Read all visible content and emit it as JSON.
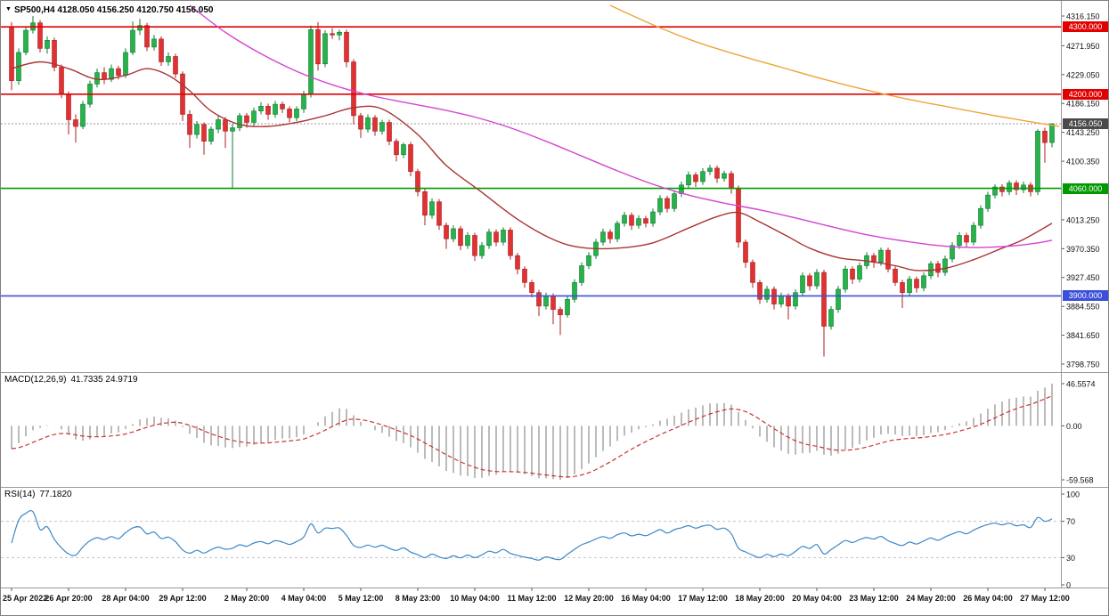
{
  "header": {
    "marker": "▼",
    "symbol_period": "SP500,H4",
    "ohlc": "4128.050 4156.250 4120.750 4156.050"
  },
  "colors": {
    "bull": "#27b24a",
    "bull_border": "#0d7a33",
    "bear": "#e03232",
    "bear_border": "#a82020",
    "current_badge": "#4a4a4a",
    "macd_hist": "#777777",
    "macd_signal": "#cc3333",
    "rsi": "#3b87c8"
  },
  "price_axis": {
    "range": {
      "top": 4316.15,
      "bottom": 3798.75
    },
    "ticks": [
      "4316.150",
      "4271.950",
      "4229.050",
      "4186.150",
      "4143.250",
      "4100.350",
      "4013.250",
      "3970.350",
      "3927.450",
      "3884.550",
      "3841.650",
      "3798.750"
    ]
  },
  "levels": [
    {
      "value": 4300,
      "label": "4300.000",
      "color": "#e00000"
    },
    {
      "value": 4200,
      "label": "4200.000",
      "color": "#e00000"
    },
    {
      "value": 4060,
      "label": "4060.000",
      "color": "#009a00"
    },
    {
      "value": 3900,
      "label": "3900.000",
      "color": "#3b4fd8"
    }
  ],
  "current_price": {
    "value": 4156.05,
    "label": "4156.050"
  },
  "chart_data": {
    "type": "candlestick",
    "symbol": "SP500",
    "timeframe": "H4",
    "title": "SP500,H4",
    "last_ohlc": {
      "open": 4128.05,
      "high": 4156.25,
      "low": 4120.75,
      "close": 4156.05
    },
    "candles": [
      [
        4300,
        4307,
        4206,
        4220
      ],
      [
        4220,
        4268,
        4214,
        4262
      ],
      [
        4262,
        4300,
        4258,
        4295
      ],
      [
        4295,
        4316,
        4290,
        4306
      ],
      [
        4306,
        4310,
        4262,
        4268
      ],
      [
        4268,
        4286,
        4260,
        4280
      ],
      [
        4280,
        4284,
        4234,
        4240
      ],
      [
        4240,
        4244,
        4194,
        4200
      ],
      [
        4200,
        4204,
        4140,
        4162
      ],
      [
        4162,
        4170,
        4128,
        4152
      ],
      [
        4152,
        4190,
        4148,
        4185
      ],
      [
        4185,
        4220,
        4180,
        4215
      ],
      [
        4215,
        4238,
        4210,
        4232
      ],
      [
        4232,
        4240,
        4215,
        4222
      ],
      [
        4222,
        4244,
        4218,
        4238
      ],
      [
        4238,
        4242,
        4222,
        4228
      ],
      [
        4228,
        4268,
        4224,
        4262
      ],
      [
        4262,
        4308,
        4258,
        4295
      ],
      [
        4295,
        4312,
        4288,
        4302
      ],
      [
        4302,
        4306,
        4264,
        4270
      ],
      [
        4270,
        4288,
        4265,
        4282
      ],
      [
        4282,
        4286,
        4242,
        4248
      ],
      [
        4248,
        4262,
        4242,
        4256
      ],
      [
        4256,
        4260,
        4224,
        4230
      ],
      [
        4230,
        4234,
        4160,
        4170
      ],
      [
        4170,
        4176,
        4120,
        4140
      ],
      [
        4140,
        4160,
        4134,
        4155
      ],
      [
        4155,
        4158,
        4110,
        4130
      ],
      [
        4130,
        4152,
        4125,
        4148
      ],
      [
        4148,
        4168,
        4142,
        4162
      ],
      [
        4162,
        4166,
        4120,
        4145
      ],
      [
        4145,
        4156,
        4061,
        4150
      ],
      [
        4150,
        4172,
        4145,
        4168
      ],
      [
        4168,
        4172,
        4150,
        4158
      ],
      [
        4158,
        4180,
        4152,
        4175
      ],
      [
        4175,
        4188,
        4170,
        4182
      ],
      [
        4182,
        4186,
        4162,
        4170
      ],
      [
        4170,
        4190,
        4165,
        4185
      ],
      [
        4185,
        4189,
        4172,
        4178
      ],
      [
        4178,
        4182,
        4158,
        4165
      ],
      [
        4165,
        4182,
        4160,
        4178
      ],
      [
        4178,
        4205,
        4172,
        4200
      ],
      [
        4200,
        4302,
        4195,
        4296
      ],
      [
        4296,
        4307,
        4235,
        4245
      ],
      [
        4245,
        4295,
        4240,
        4290
      ],
      [
        4290,
        4298,
        4282,
        4288
      ],
      [
        4288,
        4296,
        4280,
        4292
      ],
      [
        4292,
        4296,
        4240,
        4248
      ],
      [
        4248,
        4252,
        4155,
        4168
      ],
      [
        4168,
        4172,
        4135,
        4148
      ],
      [
        4148,
        4170,
        4143,
        4165
      ],
      [
        4165,
        4169,
        4138,
        4145
      ],
      [
        4145,
        4162,
        4140,
        4158
      ],
      [
        4158,
        4162,
        4124,
        4130
      ],
      [
        4130,
        4134,
        4100,
        4110
      ],
      [
        4110,
        4128,
        4105,
        4125
      ],
      [
        4125,
        4129,
        4078,
        4085
      ],
      [
        4085,
        4089,
        4048,
        4055
      ],
      [
        4055,
        4059,
        4005,
        4020
      ],
      [
        4020,
        4045,
        4015,
        4040
      ],
      [
        4040,
        4044,
        3998,
        4005
      ],
      [
        4005,
        4009,
        3970,
        3985
      ],
      [
        3985,
        4005,
        3980,
        4000
      ],
      [
        4000,
        4004,
        3968,
        3975
      ],
      [
        3975,
        3995,
        3970,
        3990
      ],
      [
        3990,
        3994,
        3952,
        3960
      ],
      [
        3960,
        3980,
        3955,
        3975
      ],
      [
        3975,
        4000,
        3970,
        3995
      ],
      [
        3995,
        3999,
        3974,
        3980
      ],
      [
        3980,
        4002,
        3975,
        3998
      ],
      [
        3998,
        4002,
        3954,
        3960
      ],
      [
        3960,
        3964,
        3932,
        3940
      ],
      [
        3940,
        3944,
        3912,
        3920
      ],
      [
        3920,
        3924,
        3898,
        3905
      ],
      [
        3905,
        3909,
        3870,
        3885
      ],
      [
        3885,
        3905,
        3880,
        3900
      ],
      [
        3900,
        3904,
        3858,
        3880
      ],
      [
        3880,
        3884,
        3842,
        3872
      ],
      [
        3872,
        3900,
        3868,
        3895
      ],
      [
        3895,
        3925,
        3890,
        3920
      ],
      [
        3920,
        3950,
        3915,
        3945
      ],
      [
        3945,
        3965,
        3940,
        3960
      ],
      [
        3960,
        3985,
        3955,
        3980
      ],
      [
        3980,
        4000,
        3975,
        3995
      ],
      [
        3995,
        3999,
        3978,
        3985
      ],
      [
        3985,
        4012,
        3980,
        4008
      ],
      [
        4008,
        4025,
        4003,
        4020
      ],
      [
        4020,
        4024,
        3998,
        4005
      ],
      [
        4005,
        4020,
        4000,
        4015
      ],
      [
        4015,
        4019,
        4002,
        4008
      ],
      [
        4008,
        4030,
        4003,
        4025
      ],
      [
        4025,
        4050,
        4020,
        4045
      ],
      [
        4045,
        4049,
        4024,
        4030
      ],
      [
        4030,
        4056,
        4025,
        4052
      ],
      [
        4052,
        4070,
        4047,
        4065
      ],
      [
        4065,
        4085,
        4060,
        4080
      ],
      [
        4080,
        4084,
        4062,
        4070
      ],
      [
        4070,
        4090,
        4065,
        4085
      ],
      [
        4085,
        4095,
        4080,
        4090
      ],
      [
        4090,
        4094,
        4068,
        4075
      ],
      [
        4075,
        4086,
        4070,
        4082
      ],
      [
        4082,
        4086,
        4052,
        4060
      ],
      [
        4060,
        4064,
        3972,
        3980
      ],
      [
        3980,
        3984,
        3942,
        3950
      ],
      [
        3950,
        3954,
        3912,
        3920
      ],
      [
        3920,
        3924,
        3888,
        3895
      ],
      [
        3895,
        3915,
        3890,
        3910
      ],
      [
        3910,
        3914,
        3880,
        3888
      ],
      [
        3888,
        3905,
        3883,
        3900
      ],
      [
        3900,
        3904,
        3865,
        3885
      ],
      [
        3885,
        3910,
        3880,
        3905
      ],
      [
        3905,
        3935,
        3900,
        3930
      ],
      [
        3930,
        3934,
        3908,
        3915
      ],
      [
        3915,
        3940,
        3910,
        3935
      ],
      [
        3935,
        3939,
        3810,
        3855
      ],
      [
        3855,
        3885,
        3850,
        3880
      ],
      [
        3880,
        3915,
        3875,
        3910
      ],
      [
        3910,
        3945,
        3905,
        3940
      ],
      [
        3940,
        3944,
        3918,
        3925
      ],
      [
        3925,
        3950,
        3920,
        3945
      ],
      [
        3945,
        3965,
        3940,
        3960
      ],
      [
        3960,
        3964,
        3942,
        3950
      ],
      [
        3950,
        3972,
        3945,
        3968
      ],
      [
        3968,
        3972,
        3935,
        3940
      ],
      [
        3940,
        3944,
        3915,
        3920
      ],
      [
        3920,
        3924,
        3882,
        3905
      ],
      [
        3905,
        3930,
        3900,
        3925
      ],
      [
        3925,
        3929,
        3905,
        3912
      ],
      [
        3912,
        3935,
        3907,
        3930
      ],
      [
        3930,
        3952,
        3925,
        3948
      ],
      [
        3948,
        3952,
        3928,
        3935
      ],
      [
        3935,
        3960,
        3930,
        3955
      ],
      [
        3955,
        3980,
        3950,
        3975
      ],
      [
        3975,
        3995,
        3970,
        3990
      ],
      [
        3990,
        3994,
        3972,
        3980
      ],
      [
        3980,
        4010,
        3975,
        4005
      ],
      [
        4005,
        4035,
        4000,
        4030
      ],
      [
        4030,
        4055,
        4025,
        4050
      ],
      [
        4050,
        4066,
        4045,
        4062
      ],
      [
        4062,
        4066,
        4048,
        4055
      ],
      [
        4055,
        4072,
        4050,
        4068
      ],
      [
        4068,
        4072,
        4050,
        4058
      ],
      [
        4058,
        4070,
        4053,
        4065
      ],
      [
        4065,
        4069,
        4048,
        4055
      ],
      [
        4055,
        4148,
        4050,
        4145
      ],
      [
        4145,
        4150,
        4098,
        4128
      ],
      [
        4128.05,
        4156.25,
        4120.75,
        4156.05
      ]
    ],
    "time_labels": [
      {
        "i": 0,
        "t": "25 Apr 2022"
      },
      {
        "i": 8,
        "t": "26 Apr 20:00"
      },
      {
        "i": 16,
        "t": "28 Apr 04:00"
      },
      {
        "i": 24,
        "t": "29 Apr 12:00"
      },
      {
        "i": 33,
        "t": "2 May 20:00"
      },
      {
        "i": 41,
        "t": "4 May 04:00"
      },
      {
        "i": 49,
        "t": "5 May 12:00"
      },
      {
        "i": 57,
        "t": "8 May 23:00"
      },
      {
        "i": 65,
        "t": "10 May 04:00"
      },
      {
        "i": 73,
        "t": "11 May 12:00"
      },
      {
        "i": 81,
        "t": "12 May 20:00"
      },
      {
        "i": 89,
        "t": "16 May 04:00"
      },
      {
        "i": 97,
        "t": "17 May 12:00"
      },
      {
        "i": 105,
        "t": "18 May 20:00"
      },
      {
        "i": 113,
        "t": "20 May 04:00"
      },
      {
        "i": 121,
        "t": "23 May 12:00"
      },
      {
        "i": 129,
        "t": "24 May 20:00"
      },
      {
        "i": 137,
        "t": "26 May 04:00"
      },
      {
        "i": 145,
        "t": "27 May 12:00"
      }
    ],
    "moving_averages": [
      {
        "name": "ma-fast-darkred",
        "color": "#aa3333",
        "points": [
          [
            0,
            4238
          ],
          [
            4,
            4248
          ],
          [
            8,
            4238
          ],
          [
            12,
            4222
          ],
          [
            16,
            4228
          ],
          [
            19,
            4238
          ],
          [
            22,
            4228
          ],
          [
            25,
            4205
          ],
          [
            28,
            4175
          ],
          [
            32,
            4155
          ],
          [
            36,
            4152
          ],
          [
            40,
            4158
          ],
          [
            44,
            4168
          ],
          [
            48,
            4180
          ],
          [
            52,
            4178
          ],
          [
            57,
            4140
          ],
          [
            61,
            4094
          ],
          [
            66,
            4054
          ],
          [
            71,
            4014
          ],
          [
            76,
            3984
          ],
          [
            80,
            3972
          ],
          [
            85,
            3971
          ],
          [
            90,
            3979
          ],
          [
            95,
            4001
          ],
          [
            99,
            4018
          ],
          [
            102,
            4024
          ],
          [
            105,
            4010
          ],
          [
            109,
            3988
          ],
          [
            112,
            3971
          ],
          [
            116,
            3957
          ],
          [
            120,
            3952
          ],
          [
            124,
            3945
          ],
          [
            127,
            3938
          ],
          [
            131,
            3941
          ],
          [
            135,
            3954
          ],
          [
            139,
            3971
          ],
          [
            142,
            3984
          ],
          [
            146,
            4008
          ]
        ]
      },
      {
        "name": "ma-medium-magenta",
        "color": "#d344d3",
        "points": [
          [
            25,
            4332
          ],
          [
            30,
            4292
          ],
          [
            35,
            4260
          ],
          [
            40,
            4234
          ],
          [
            45,
            4214
          ],
          [
            50,
            4199
          ],
          [
            55,
            4188
          ],
          [
            60,
            4178
          ],
          [
            65,
            4166
          ],
          [
            70,
            4150
          ],
          [
            75,
            4130
          ],
          [
            80,
            4108
          ],
          [
            85,
            4086
          ],
          [
            90,
            4066
          ],
          [
            95,
            4050
          ],
          [
            100,
            4038
          ],
          [
            105,
            4028
          ],
          [
            110,
            4016
          ],
          [
            115,
            4003
          ],
          [
            120,
            3991
          ],
          [
            125,
            3982
          ],
          [
            130,
            3975
          ],
          [
            135,
            3972
          ],
          [
            140,
            3974
          ],
          [
            144,
            3979
          ],
          [
            146,
            3983
          ]
        ]
      },
      {
        "name": "ma-slow-orange",
        "color": "#efa43b",
        "points": [
          [
            84,
            4332
          ],
          [
            90,
            4303
          ],
          [
            96,
            4278
          ],
          [
            102,
            4258
          ],
          [
            108,
            4240
          ],
          [
            114,
            4222
          ],
          [
            120,
            4206
          ],
          [
            126,
            4192
          ],
          [
            132,
            4180
          ],
          [
            138,
            4168
          ],
          [
            143,
            4159
          ],
          [
            147,
            4152
          ]
        ]
      }
    ],
    "indicators": {
      "macd": {
        "label": "MACD(12,26,9)",
        "values_label": "41.7335 24.9719",
        "params": [
          12,
          26,
          9
        ],
        "axis": {
          "max": 46.5574,
          "min": -59.568,
          "labels": [
            "46.5574",
            "0.00",
            "-59.568"
          ]
        }
      },
      "rsi": {
        "label": "RSI(14)",
        "value_label": "77.1820",
        "period": 14,
        "levels": [
          70,
          30
        ],
        "axis": [
          "100",
          "70",
          "30",
          "0"
        ]
      }
    }
  }
}
